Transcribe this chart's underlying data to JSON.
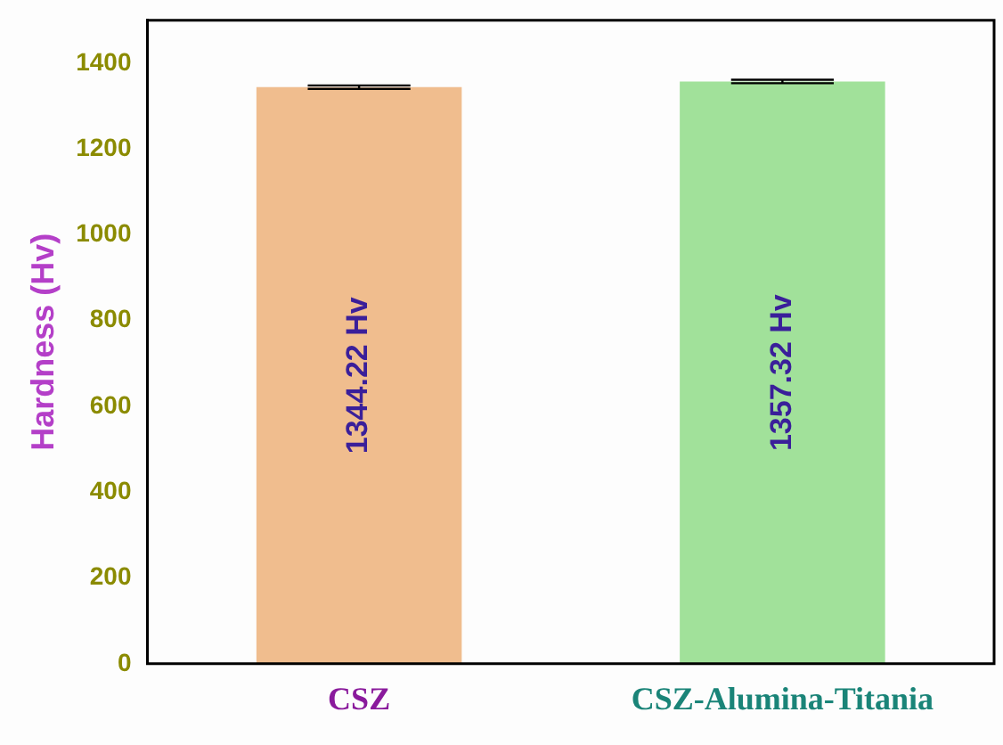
{
  "chart_data": {
    "type": "bar",
    "ylabel": "Hardness (Hv)",
    "categories": [
      "CSZ",
      "CSZ-Alumina-Titania"
    ],
    "values": [
      1344.22,
      1357.32
    ],
    "colors": [
      "#f0bd8e",
      "#a1e19a"
    ],
    "errors": [
      4,
      4
    ],
    "value_labels": [
      "1344.22 Hv",
      "1357.32 Hv"
    ],
    "ylim": [
      0,
      1500
    ],
    "yticks": [
      0,
      200,
      400,
      600,
      800,
      1000,
      1200,
      1400
    ],
    "grid": false,
    "legend": false
  }
}
